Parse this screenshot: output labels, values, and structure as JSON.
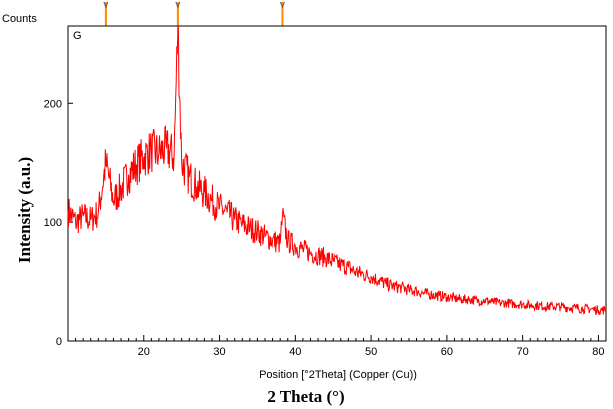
{
  "chart_data": {
    "type": "line",
    "panel_label": "G",
    "units_label": "Counts",
    "xlabel_instrument": "Position [°2Theta] (Copper (Cu))",
    "xlabel": "2 Theta (°)",
    "ylabel": "Intensity (a.u.)",
    "xlim": [
      10,
      81
    ],
    "ylim": [
      0,
      265
    ],
    "xticks": [
      "20",
      "30",
      "40",
      "50",
      "60",
      "70",
      "80"
    ],
    "yticks": [
      "0",
      "100",
      "200"
    ],
    "line_color": "#ff0000",
    "reference_marker_color": "#ff8c00",
    "reference_markers_x": [
      15.0,
      24.5,
      38.3
    ],
    "series": [
      {
        "x": [
          10,
          11,
          12,
          13,
          14,
          15,
          16,
          17,
          18,
          19,
          20,
          21,
          22,
          23,
          24,
          24.5,
          25,
          26,
          27,
          28,
          29,
          30,
          31,
          32,
          33,
          34,
          35,
          36,
          37,
          38,
          38.3,
          39,
          40,
          41,
          42,
          43,
          44,
          45,
          46,
          47,
          48,
          49,
          50,
          51,
          52,
          53,
          54,
          55,
          56,
          57,
          58,
          59,
          60,
          61,
          62,
          63,
          64,
          65,
          66,
          67,
          68,
          69,
          70,
          71,
          72,
          73,
          74,
          75,
          76,
          77,
          78,
          79,
          80,
          81
        ],
        "values": [
          110,
          100,
          105,
          102,
          108,
          150,
          118,
          128,
          140,
          148,
          155,
          160,
          158,
          162,
          155,
          265,
          150,
          138,
          130,
          125,
          118,
          112,
          108,
          102,
          98,
          95,
          92,
          88,
          85,
          82,
          105,
          84,
          80,
          77,
          74,
          72,
          70,
          67,
          64,
          62,
          58,
          56,
          54,
          51,
          48,
          46,
          45,
          43,
          42,
          40,
          39,
          38,
          37,
          36,
          35,
          35,
          34,
          34,
          33,
          32,
          32,
          31,
          31,
          30,
          30,
          29,
          29,
          29,
          28,
          28,
          27,
          27,
          26,
          26
        ]
      }
    ]
  }
}
